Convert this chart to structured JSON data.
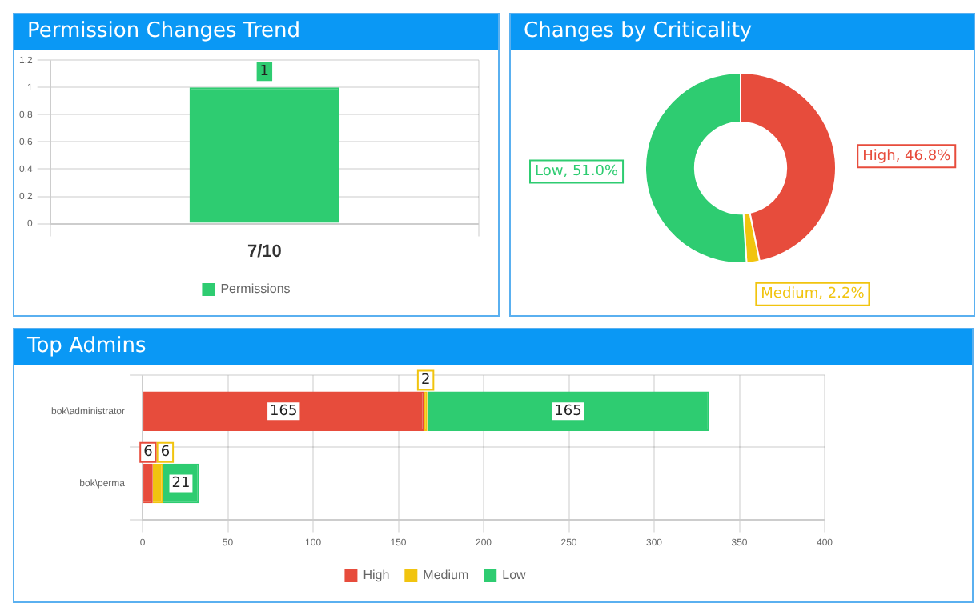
{
  "chart_data": [
    {
      "type": "bar",
      "title": "Permission Changes Trend",
      "categories": [
        "7/10"
      ],
      "series": [
        {
          "name": "Permissions",
          "color": "#2ecc71",
          "values": [
            1
          ]
        }
      ],
      "ylim": [
        0,
        1.2
      ],
      "yticks": [
        0,
        0.2,
        0.4,
        0.6,
        0.8,
        1,
        1.2
      ],
      "grid": true,
      "legend": "bottom",
      "data_labels": true
    },
    {
      "type": "donut",
      "title": "Changes by Criticality",
      "categories": [
        "High",
        "Medium",
        "Low"
      ],
      "values": [
        46.8,
        2.2,
        51.0
      ],
      "colors": [
        "#e74c3c",
        "#f1c40f",
        "#2ecc71"
      ],
      "value_labels": [
        "46.8%",
        "2.2%",
        "51.0%"
      ],
      "legend": false
    },
    {
      "type": "bar",
      "title": "Top Admins",
      "orientation": "horizontal",
      "stacked": true,
      "categories": [
        "bok\\administrator",
        "bok\\perma"
      ],
      "series": [
        {
          "name": "High",
          "color": "#e74c3c",
          "values": [
            165,
            6
          ]
        },
        {
          "name": "Medium",
          "color": "#f1c40f",
          "values": [
            2,
            6
          ]
        },
        {
          "name": "Low",
          "color": "#2ecc71",
          "values": [
            165,
            21
          ]
        }
      ],
      "xlim": [
        0,
        400
      ],
      "xticks": [
        0,
        50,
        100,
        150,
        200,
        250,
        300,
        350,
        400
      ],
      "grid": true,
      "legend": "bottom",
      "data_labels": true
    }
  ]
}
